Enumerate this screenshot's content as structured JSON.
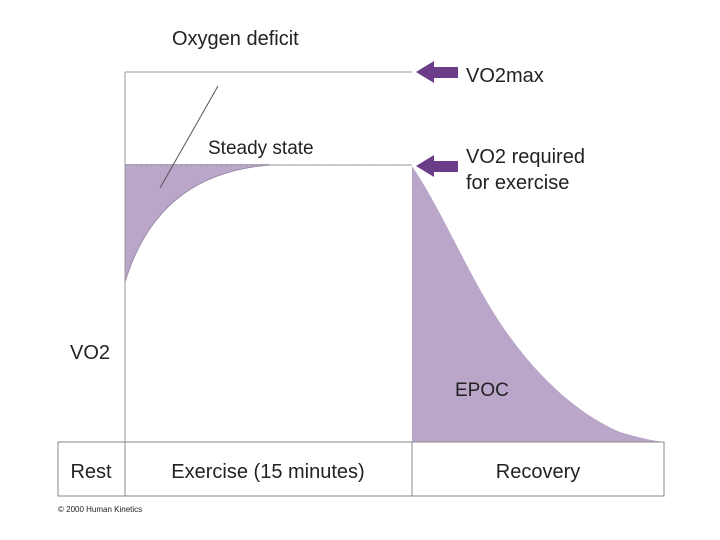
{
  "labels": {
    "oxygen_deficit": "Oxygen deficit",
    "steady_state": "Steady state",
    "vo2max": "VO2max",
    "vo2_required_line1": "VO2 required",
    "vo2_required_line2": "for exercise",
    "y_axis": "VO2",
    "epoc": "EPOC",
    "copyright": "© 2000 Human Kinetics"
  },
  "phases": [
    "Rest",
    "Exercise (15 minutes)",
    "Recovery"
  ],
  "colors": {
    "area_fill": "#b9a6c9",
    "arrow": "#6b3c88",
    "line": "#888888"
  },
  "icons": {
    "vo2max_arrow": "arrow-left-icon",
    "vo2_required_arrow": "arrow-left-icon"
  }
}
